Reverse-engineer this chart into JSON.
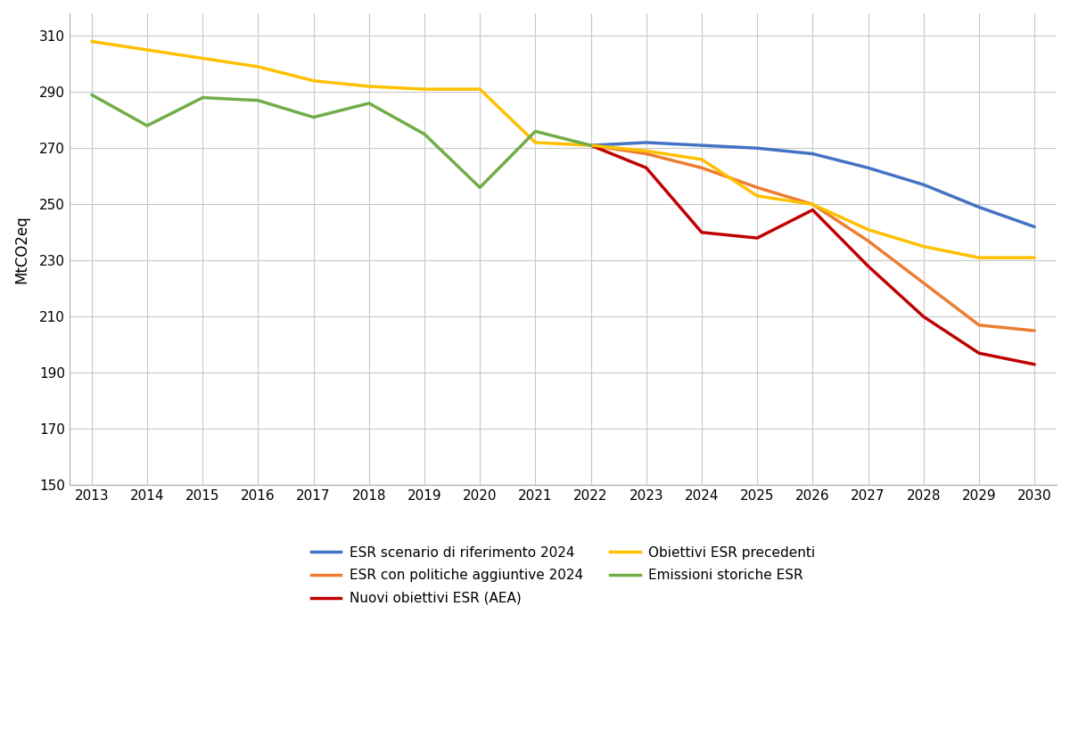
{
  "ylabel": "MtCO2eq",
  "ylim": [
    150,
    318
  ],
  "yticks": [
    150,
    170,
    190,
    210,
    230,
    250,
    270,
    290,
    310
  ],
  "xlim": [
    2012.6,
    2030.4
  ],
  "xticks": [
    2013,
    2014,
    2015,
    2016,
    2017,
    2018,
    2019,
    2020,
    2021,
    2022,
    2023,
    2024,
    2025,
    2026,
    2027,
    2028,
    2029,
    2030
  ],
  "background_color": "#ffffff",
  "grid_color": "#c8c8c8",
  "series": [
    {
      "label": "ESR scenario di riferimento 2024",
      "color": "#4472C4",
      "linewidth": 2.5,
      "x": [
        2022,
        2023,
        2024,
        2025,
        2026,
        2027,
        2028,
        2029,
        2030
      ],
      "y": [
        271,
        272,
        271,
        270,
        268,
        263,
        257,
        249,
        242
      ]
    },
    {
      "label": "ESR con politiche aggiuntive 2024",
      "color": "#ED7D31",
      "linewidth": 2.5,
      "x": [
        2022,
        2023,
        2024,
        2025,
        2026,
        2027,
        2028,
        2029,
        2030
      ],
      "y": [
        271,
        268,
        263,
        256,
        250,
        237,
        222,
        207,
        205
      ]
    },
    {
      "label": "Nuovi obiettivi ESR (AEA)",
      "color": "#C00000",
      "linewidth": 2.5,
      "x": [
        2022,
        2023,
        2024,
        2025,
        2026,
        2027,
        2028,
        2029,
        2030
      ],
      "y": [
        271,
        263,
        240,
        238,
        248,
        228,
        210,
        197,
        193
      ]
    },
    {
      "label": "Obiettivi ESR precedenti",
      "color": "#FFC000",
      "linewidth": 2.5,
      "x": [
        2013,
        2014,
        2015,
        2016,
        2017,
        2018,
        2019,
        2020,
        2021,
        2022,
        2023,
        2024,
        2025,
        2026,
        2027,
        2028,
        2029,
        2030
      ],
      "y": [
        308,
        305,
        302,
        299,
        294,
        292,
        291,
        291,
        272,
        271,
        269,
        266,
        253,
        250,
        241,
        235,
        231,
        231
      ]
    },
    {
      "label": "Emissioni storiche ESR",
      "color": "#70AD47",
      "linewidth": 2.5,
      "x": [
        2013,
        2014,
        2015,
        2016,
        2017,
        2018,
        2019,
        2020,
        2021,
        2022
      ],
      "y": [
        289,
        278,
        288,
        287,
        281,
        286,
        275,
        256,
        276,
        271
      ]
    }
  ],
  "legend_order": [
    {
      "label": "ESR scenario di riferimento 2024",
      "color": "#4472C4",
      "col": 0
    },
    {
      "label": "ESR con politiche aggiuntive 2024",
      "color": "#ED7D31",
      "col": 1
    },
    {
      "label": "Nuovi obiettivi ESR (AEA)",
      "color": "#C00000",
      "col": 0
    },
    {
      "label": "Obiettivi ESR precedenti",
      "color": "#FFC000",
      "col": 1
    },
    {
      "label": "Emissioni storiche ESR",
      "color": "#70AD47",
      "col": 0
    }
  ]
}
